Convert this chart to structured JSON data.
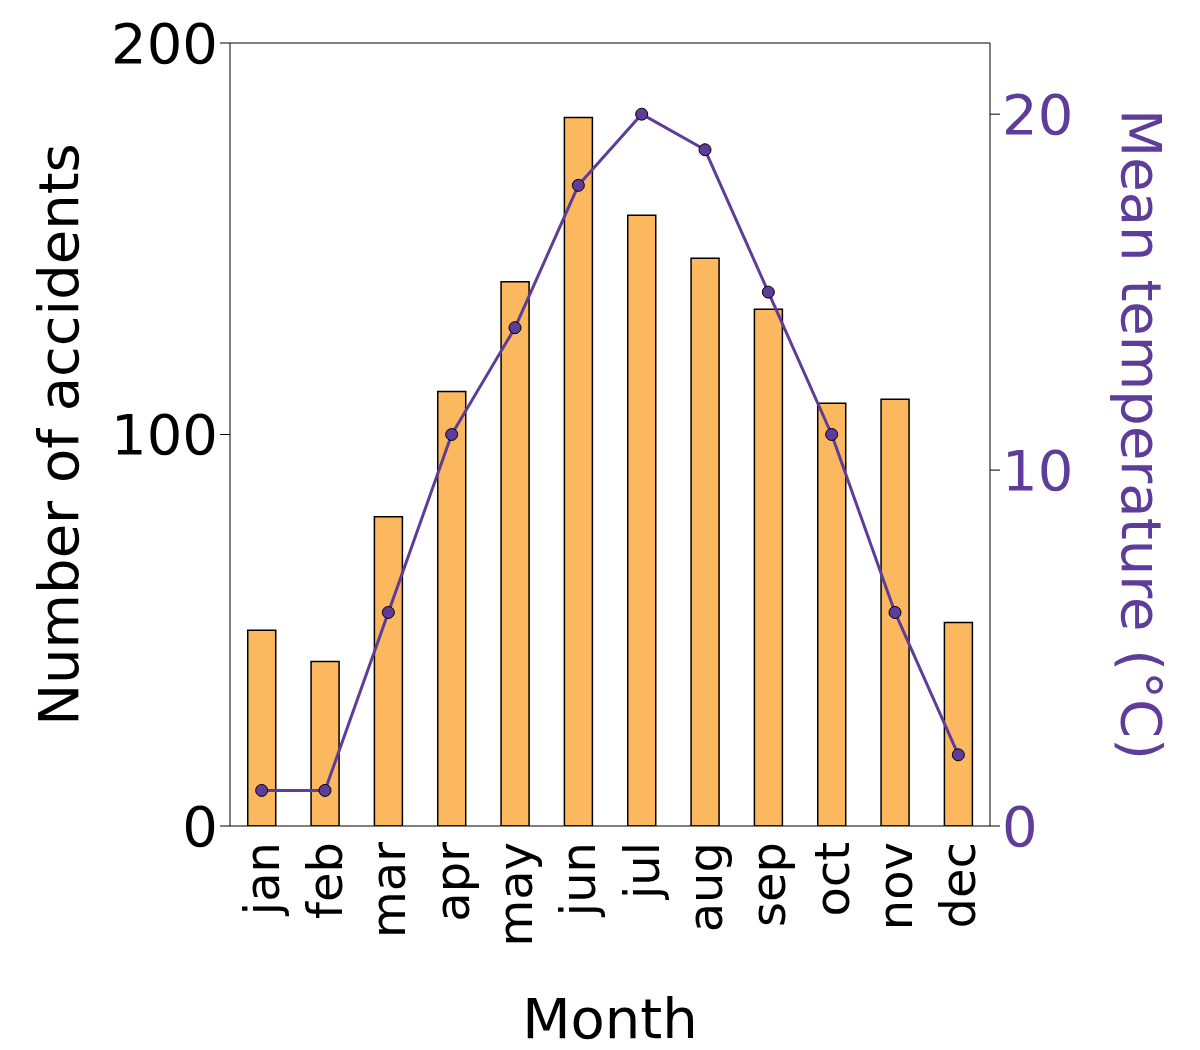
{
  "chart_data": {
    "type": "bar",
    "xlabel": "Month",
    "ylabel": "Number of accidents",
    "y2label": "Mean temperature (°C)",
    "categories": [
      "jan",
      "feb",
      "mar",
      "apr",
      "may",
      "jun",
      "jul",
      "aug",
      "sep",
      "oct",
      "nov",
      "dec"
    ],
    "series": [
      {
        "color": "#fbb85e",
        "values": [
          50,
          42,
          79,
          111,
          139,
          181,
          156,
          145,
          132,
          108,
          109,
          52
        ]
      },
      {
        "type": "line",
        "axis": "y2",
        "color": "#5e3c99",
        "values": [
          1,
          1,
          6,
          11,
          14,
          18,
          20,
          19,
          15,
          11,
          6,
          2
        ]
      }
    ],
    "ylim": [
      0,
      200
    ],
    "yticks": [
      0,
      100,
      200
    ],
    "y2lim": [
      0,
      22
    ],
    "y2ticks": [
      0,
      10,
      20
    ],
    "marker": "circle",
    "line_style": "solid"
  }
}
